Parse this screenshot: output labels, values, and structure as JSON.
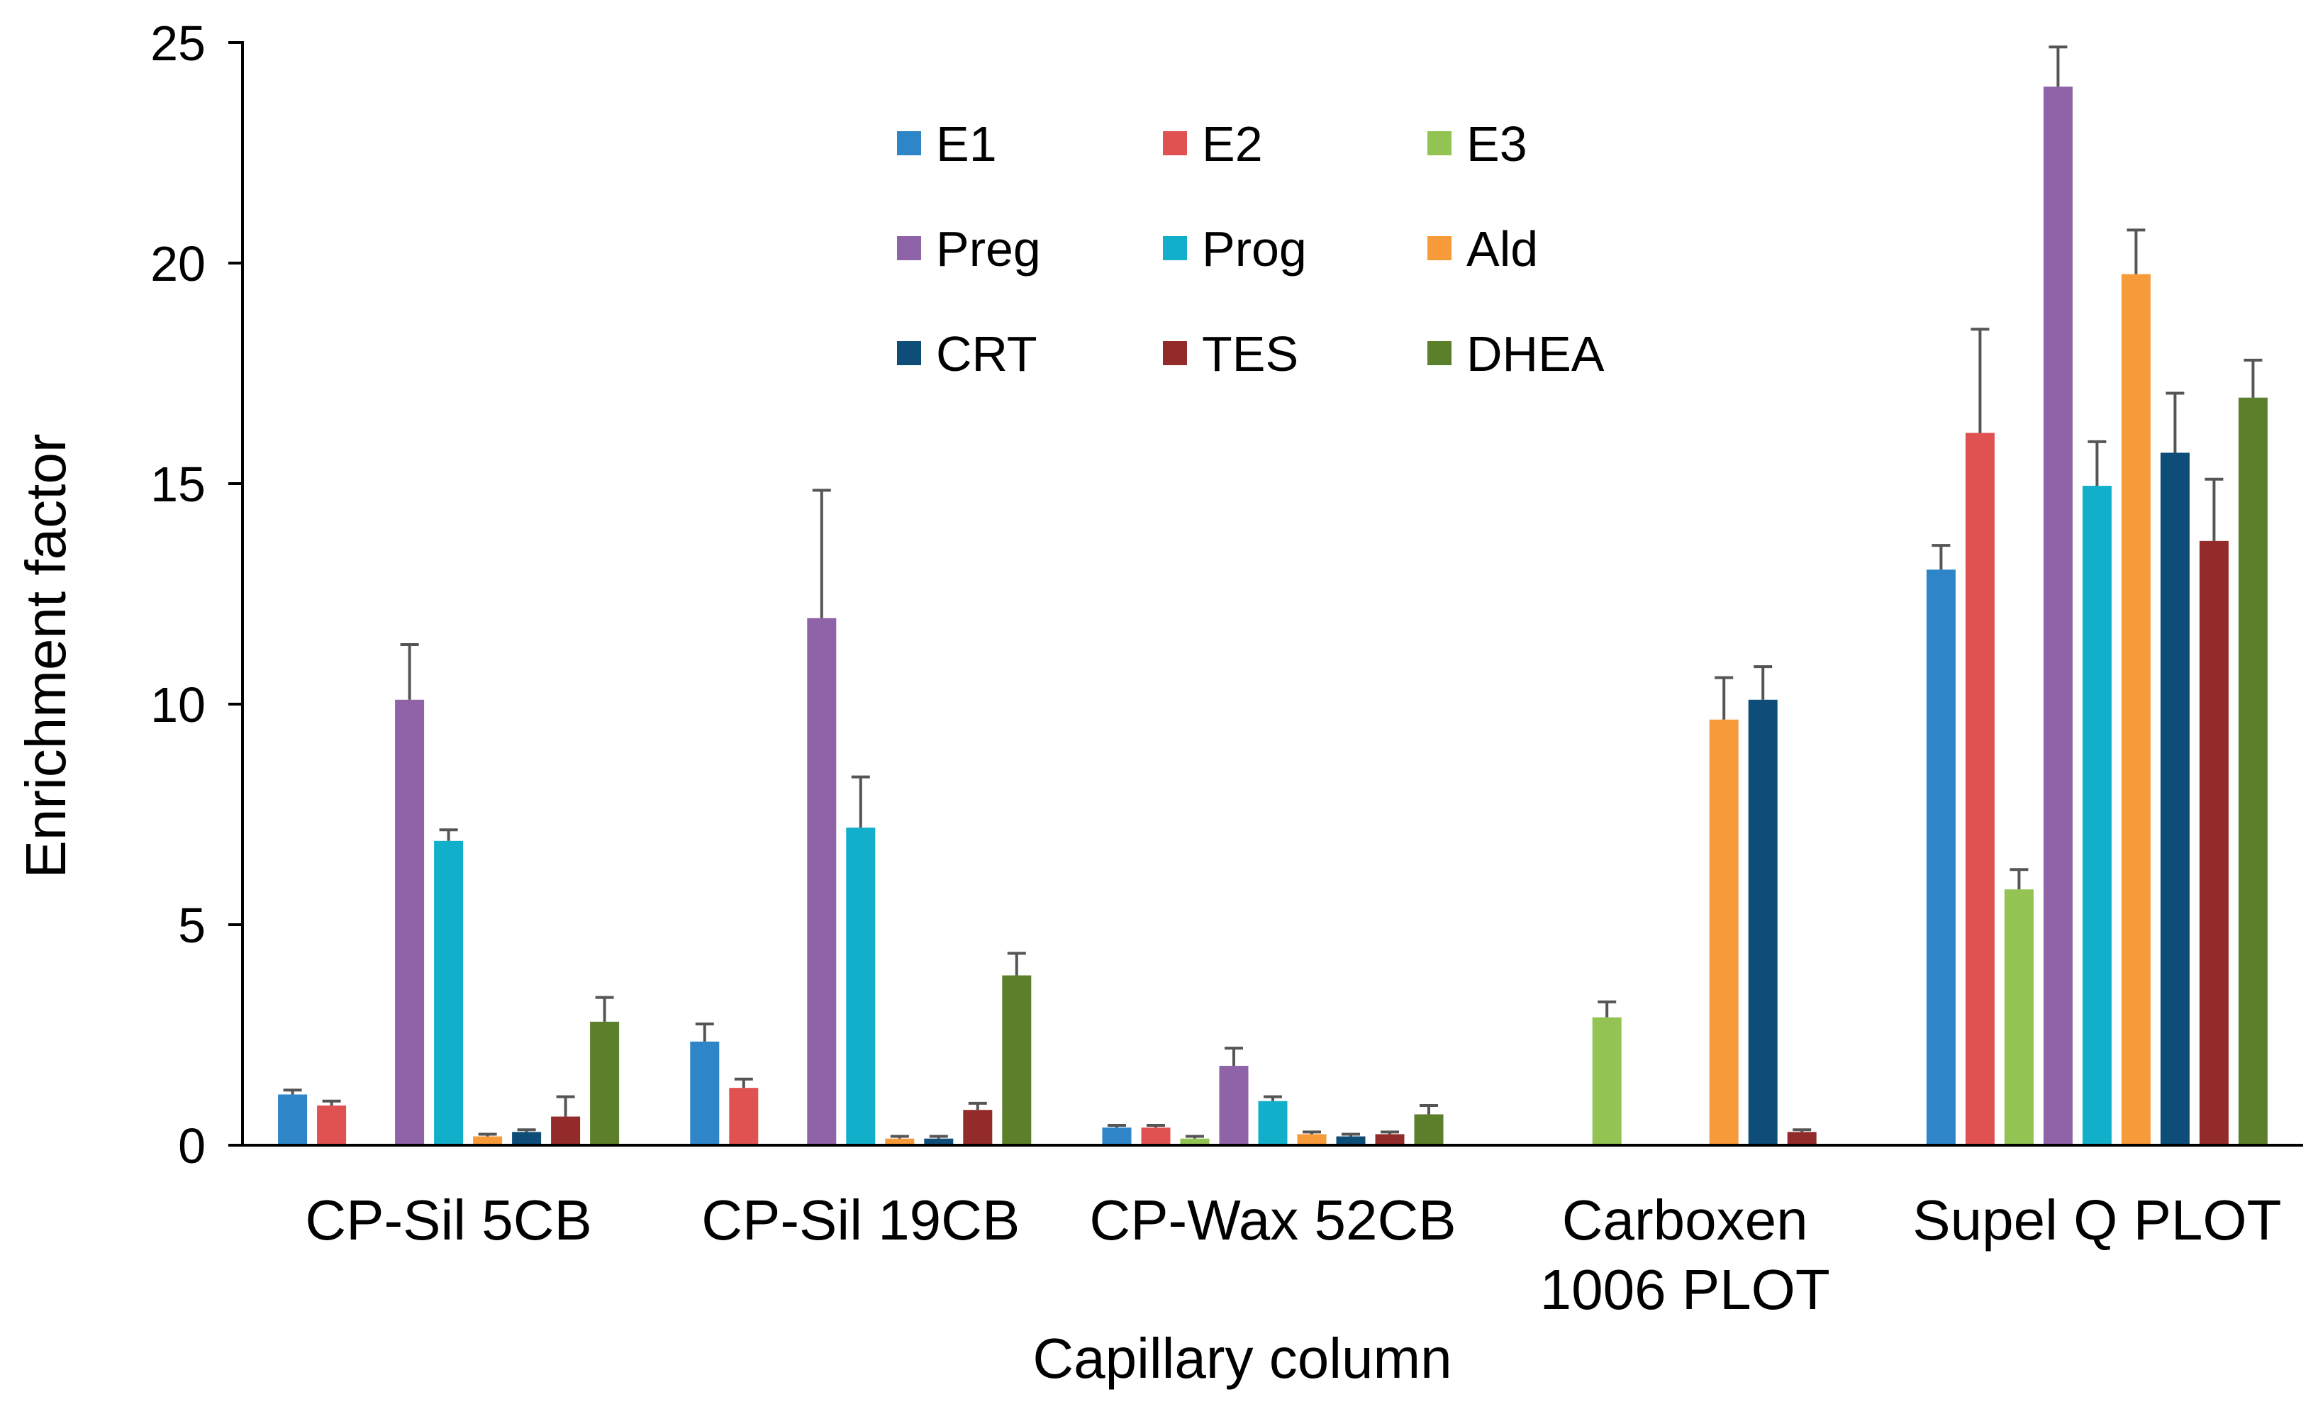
{
  "chart_data": {
    "type": "bar",
    "title": "",
    "xlabel": "Capillary column",
    "ylabel": "Enrichment factor",
    "ylim": [
      0,
      25
    ],
    "yticks": [
      "0",
      "5",
      "10",
      "15",
      "20",
      "25"
    ],
    "grid": false,
    "legend_position": "top-center",
    "categories": [
      [
        "CP-Sil 5CB"
      ],
      [
        "CP-Sil 19CB"
      ],
      [
        "CP-Wax 52CB"
      ],
      [
        "Carboxen",
        "1006 PLOT"
      ],
      [
        "Supel Q PLOT"
      ]
    ],
    "series": [
      {
        "name": "E1",
        "color": "#2E86C8",
        "values": [
          1.15,
          2.35,
          0.4,
          null,
          13.05
        ],
        "errors": [
          0.1,
          0.4,
          0.05,
          null,
          0.55
        ]
      },
      {
        "name": "E2",
        "color": "#E05252",
        "values": [
          0.9,
          1.3,
          0.4,
          null,
          16.15
        ],
        "errors": [
          0.1,
          0.2,
          0.05,
          null,
          2.35
        ]
      },
      {
        "name": "E3",
        "color": "#92C353",
        "values": [
          null,
          null,
          0.15,
          2.9,
          5.8
        ],
        "errors": [
          null,
          null,
          0.05,
          0.35,
          0.45
        ]
      },
      {
        "name": "Preg",
        "color": "#8E63A8",
        "values": [
          10.1,
          11.95,
          1.8,
          null,
          24.0
        ],
        "errors": [
          1.25,
          2.9,
          0.4,
          null,
          0.9
        ]
      },
      {
        "name": "Prog",
        "color": "#12AFCB",
        "values": [
          6.9,
          7.2,
          1.0,
          null,
          14.95
        ],
        "errors": [
          0.25,
          1.15,
          0.1,
          null,
          1.0
        ]
      },
      {
        "name": "Ald",
        "color": "#F79A3A",
        "values": [
          0.2,
          0.15,
          0.25,
          9.65,
          19.75
        ],
        "errors": [
          0.05,
          0.05,
          0.05,
          0.95,
          1.0
        ]
      },
      {
        "name": "CRT",
        "color": "#0D4D78",
        "values": [
          0.3,
          0.15,
          0.2,
          10.1,
          15.7
        ],
        "errors": [
          0.05,
          0.05,
          0.05,
          0.75,
          1.35
        ]
      },
      {
        "name": "TES",
        "color": "#942B2B",
        "values": [
          0.65,
          0.8,
          0.25,
          0.3,
          13.7
        ],
        "errors": [
          0.45,
          0.15,
          0.05,
          0.05,
          1.4
        ]
      },
      {
        "name": "DHEA",
        "color": "#5C7F2C",
        "values": [
          2.8,
          3.85,
          0.7,
          null,
          16.95
        ],
        "errors": [
          0.55,
          0.5,
          0.2,
          null,
          0.85
        ]
      }
    ]
  }
}
